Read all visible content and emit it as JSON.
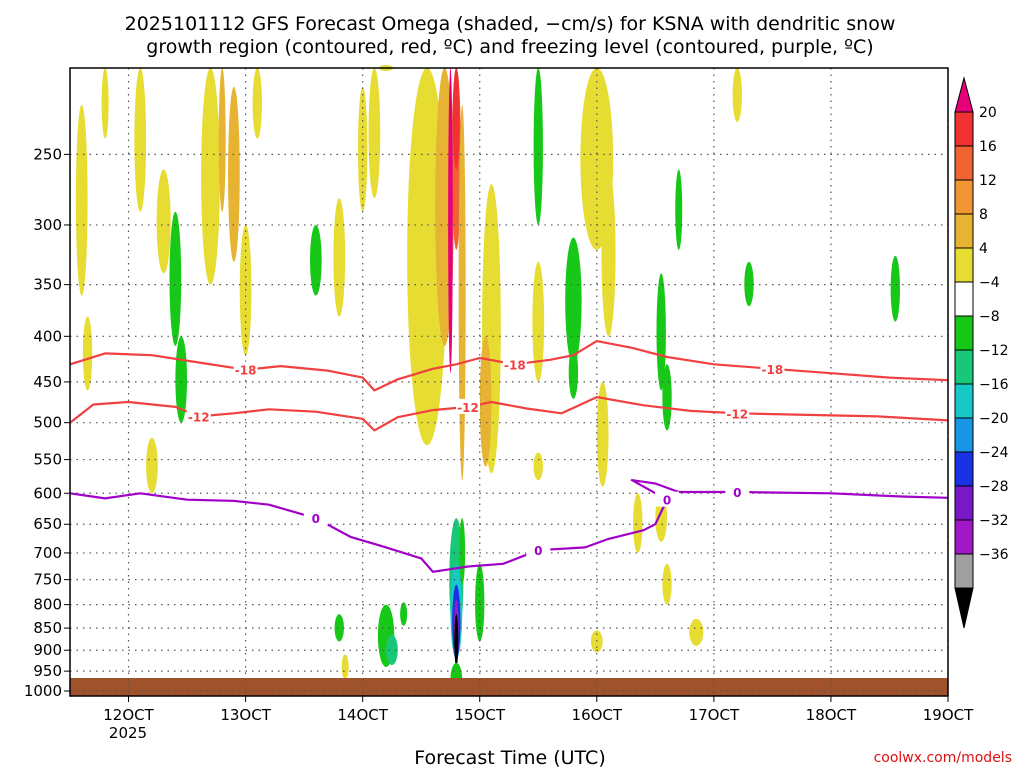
{
  "chart_data": {
    "type": "heatmap",
    "title_lines": [
      "2025101112 GFS Forecast Omega (shaded, −cm/s) for KSNA with dendritic snow",
      "growth region (contoured, red, ºC) and freezing level (contoured, purple, ºC)"
    ],
    "xlabel": "Forecast Time (UTC)",
    "ylabel": "",
    "x_ticks": [
      "12OCT",
      "13OCT",
      "14OCT",
      "15OCT",
      "16OCT",
      "17OCT",
      "18OCT",
      "19OCT"
    ],
    "x_year": "2025",
    "x_range": [
      11.5,
      19.0
    ],
    "y_ticks": [
      250,
      300,
      350,
      400,
      450,
      500,
      550,
      600,
      650,
      700,
      750,
      800,
      850,
      900,
      950,
      1000
    ],
    "y_range_hPa": [
      200,
      1013
    ],
    "grid": true,
    "colorbar": {
      "labels": [
        "20",
        "16",
        "12",
        "8",
        "4",
        "−4",
        "−8",
        "−12",
        "−16",
        "−20",
        "−24",
        "−28",
        "−32",
        "−36"
      ],
      "colors": [
        "#e8007a",
        "#f03232",
        "#f06432",
        "#f09632",
        "#e6b432",
        "#e6dc32",
        "#ffffff",
        "#18c818",
        "#18c878",
        "#18c8c8",
        "#1896e6",
        "#1832e6",
        "#7818c8",
        "#a018c8",
        "#a0a0a0",
        "#000000"
      ]
    },
    "contours": [
      {
        "name": "dendritic snow growth (red, ºC)",
        "color": "#f04040",
        "level": -18,
        "labels": [
          "-18",
          "-18",
          "-18"
        ],
        "points": [
          [
            11.5,
            430
          ],
          [
            11.8,
            418
          ],
          [
            12.2,
            420
          ],
          [
            12.6,
            428
          ],
          [
            13.0,
            436
          ],
          [
            13.3,
            432
          ],
          [
            13.7,
            437
          ],
          [
            14.0,
            445
          ],
          [
            14.1,
            460
          ],
          [
            14.3,
            447
          ],
          [
            14.6,
            435
          ],
          [
            14.8,
            430
          ],
          [
            15.0,
            423
          ],
          [
            15.3,
            430
          ],
          [
            15.6,
            425
          ],
          [
            15.8,
            420
          ],
          [
            16.0,
            405
          ],
          [
            16.3,
            412
          ],
          [
            16.6,
            422
          ],
          [
            17.0,
            430
          ],
          [
            17.5,
            435
          ],
          [
            18.0,
            440
          ],
          [
            18.5,
            445
          ],
          [
            19.0,
            448
          ]
        ]
      },
      {
        "name": "dendritic snow growth (red, ºC)",
        "color": "#f04040",
        "level": -12,
        "labels": [
          "-12",
          "-12",
          "-12"
        ],
        "points": [
          [
            11.5,
            500
          ],
          [
            11.7,
            477
          ],
          [
            12.0,
            474
          ],
          [
            12.4,
            480
          ],
          [
            12.6,
            492
          ],
          [
            12.9,
            488
          ],
          [
            13.2,
            483
          ],
          [
            13.6,
            486
          ],
          [
            14.0,
            495
          ],
          [
            14.1,
            510
          ],
          [
            14.3,
            493
          ],
          [
            14.6,
            484
          ],
          [
            14.9,
            480
          ],
          [
            15.1,
            474
          ],
          [
            15.4,
            482
          ],
          [
            15.7,
            488
          ],
          [
            16.0,
            468
          ],
          [
            16.4,
            478
          ],
          [
            16.8,
            485
          ],
          [
            17.2,
            488
          ],
          [
            17.8,
            490
          ],
          [
            18.4,
            492
          ],
          [
            19.0,
            497
          ]
        ]
      },
      {
        "name": "freezing level (purple, ºC)",
        "color": "#a000c8",
        "level": 0,
        "labels": [
          "0",
          "0",
          "0",
          "0"
        ],
        "points": [
          [
            11.5,
            600
          ],
          [
            11.8,
            608
          ],
          [
            12.1,
            600
          ],
          [
            12.5,
            610
          ],
          [
            12.9,
            612
          ],
          [
            13.2,
            618
          ],
          [
            13.6,
            640
          ],
          [
            13.9,
            672
          ],
          [
            14.2,
            690
          ],
          [
            14.5,
            710
          ],
          [
            14.6,
            735
          ],
          [
            14.9,
            725
          ],
          [
            15.2,
            720
          ],
          [
            15.5,
            695
          ],
          [
            15.9,
            690
          ],
          [
            16.1,
            675
          ],
          [
            16.4,
            660
          ],
          [
            16.5,
            650
          ],
          [
            16.6,
            610
          ],
          [
            16.3,
            580
          ],
          [
            16.5,
            585
          ],
          [
            16.7,
            598
          ],
          [
            17.2,
            598
          ],
          [
            18.0,
            600
          ],
          [
            18.6,
            605
          ],
          [
            19.0,
            607
          ]
        ]
      }
    ]
  },
  "credit": "coolwx.com/models"
}
